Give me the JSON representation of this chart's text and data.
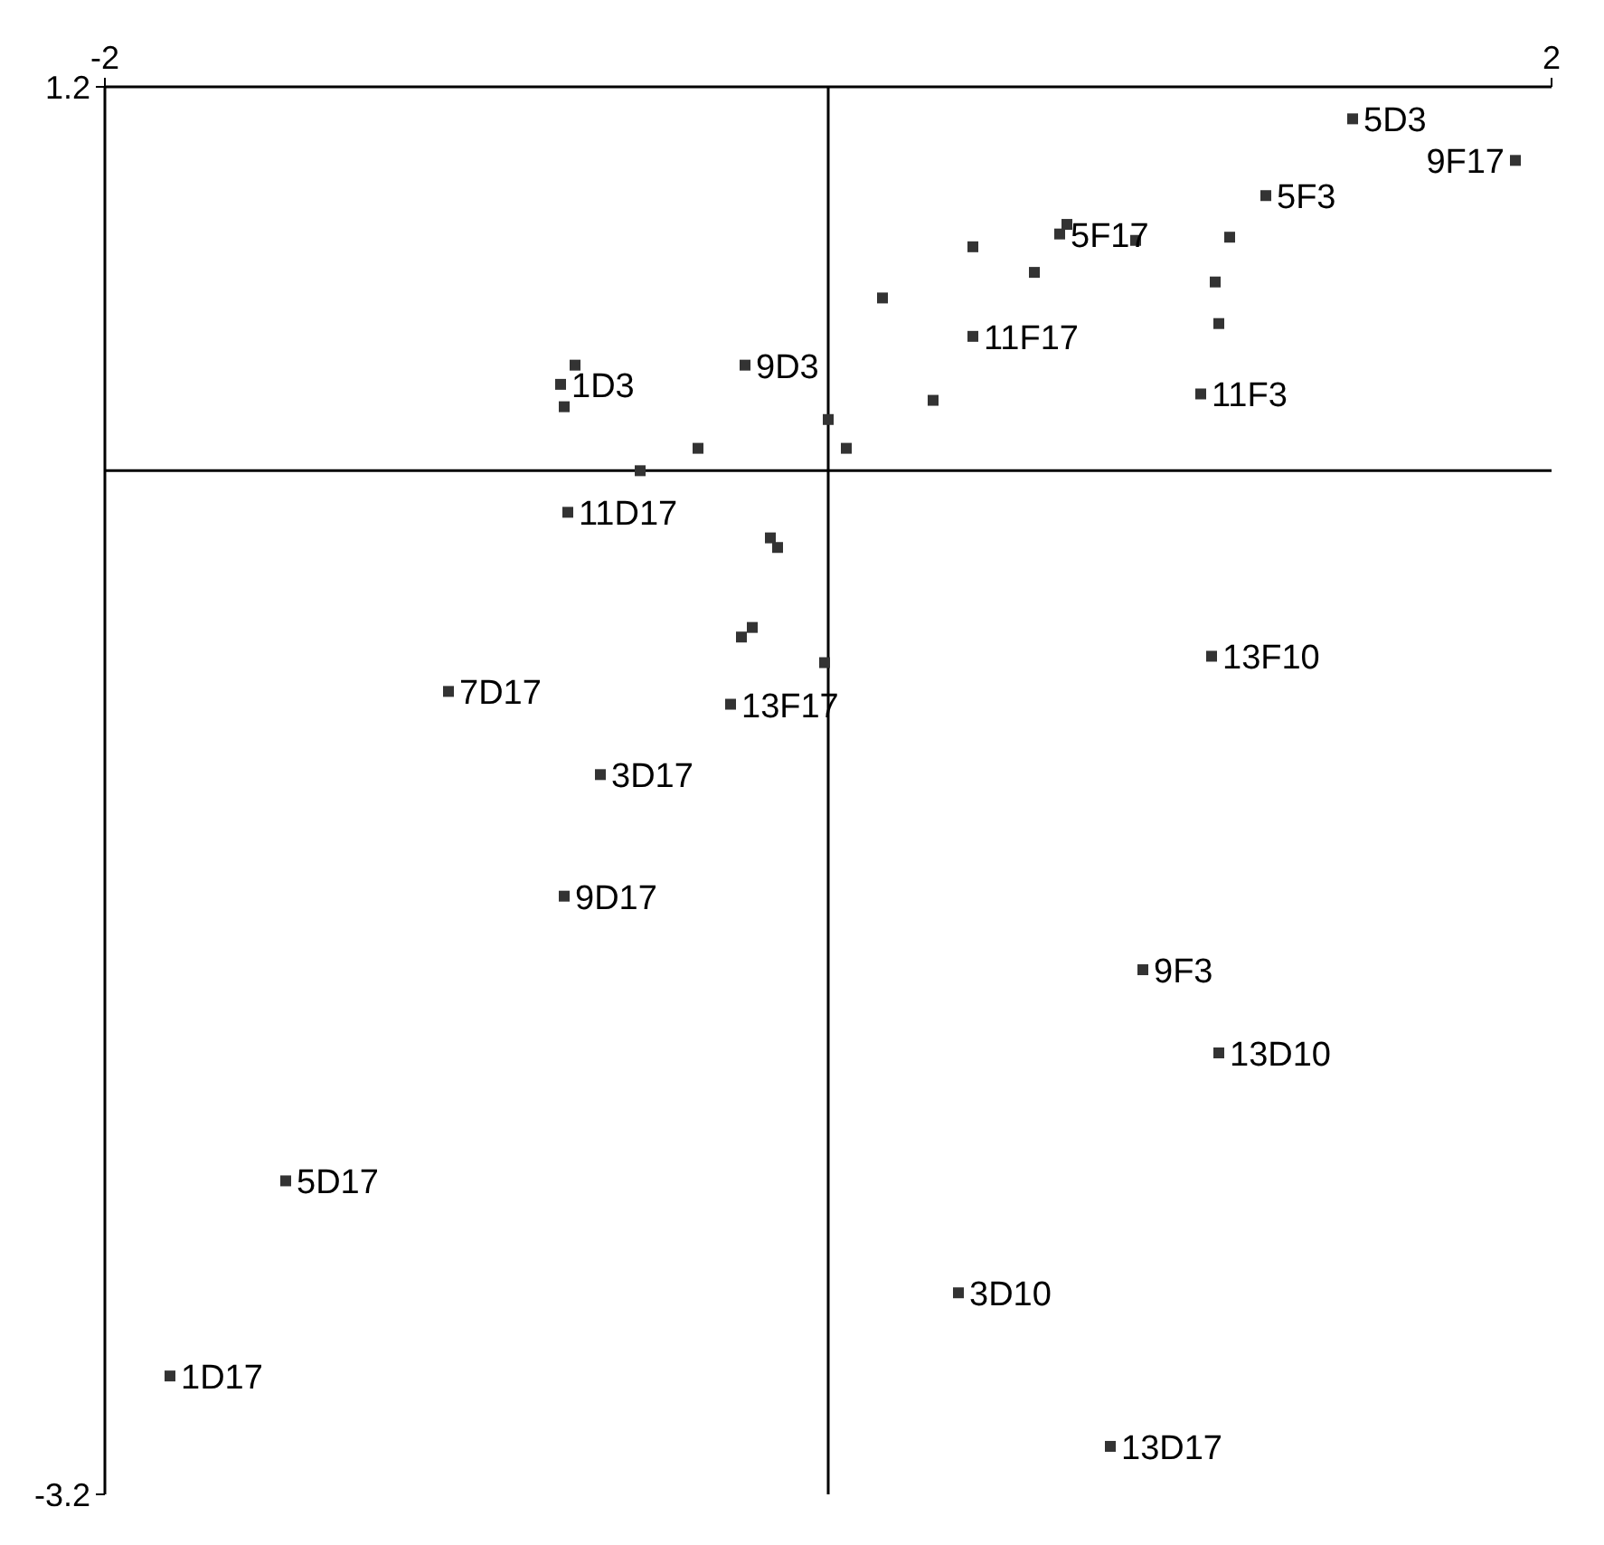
{
  "chart_data": {
    "type": "scatter",
    "marker": "square",
    "xlim": [
      -2,
      2
    ],
    "ylim": [
      -3.2,
      1.2
    ],
    "xticks": [
      -2,
      2
    ],
    "yticks": [
      1.2,
      -3.2
    ],
    "series": [
      {
        "color": "#333333",
        "x": [
          1.45,
          1.21,
          1.9,
          0.64,
          0.4,
          -0.23,
          -0.74,
          1.03,
          -0.72,
          1.06,
          -1.05,
          -0.27,
          -0.63,
          -0.73,
          0.87,
          1.08,
          -1.5,
          0.36,
          -1.82,
          0.78,
          0.66,
          0.85,
          1.11,
          0.4,
          0.57,
          1.07,
          1.08,
          0.15,
          -0.7,
          -0.73,
          0.29,
          0.0,
          0.05,
          -0.36,
          -0.52,
          -0.16,
          -0.14,
          -0.21,
          -0.24,
          -0.01
        ],
        "values": [
          1.1,
          0.86,
          0.97,
          0.74,
          0.42,
          0.33,
          0.27,
          0.24,
          -0.13,
          -0.58,
          -0.69,
          -0.73,
          -0.95,
          -1.33,
          -1.56,
          -1.82,
          -2.22,
          -2.57,
          -2.83,
          -3.05,
          0.77,
          0.72,
          0.73,
          0.7,
          0.62,
          0.59,
          0.46,
          0.54,
          0.33,
          0.2,
          0.22,
          0.16,
          0.07,
          0.07,
          0.0,
          -0.21,
          -0.24,
          -0.49,
          -0.52,
          -0.6
        ]
      }
    ],
    "annotations": [
      {
        "text": "5D3",
        "x": 1.45,
        "y": 1.1
      },
      {
        "text": "5F3",
        "x": 1.21,
        "y": 0.86
      },
      {
        "text": "9F17",
        "x": 1.9,
        "y": 0.97
      },
      {
        "text": "5F17",
        "x": 0.64,
        "y": 0.74
      },
      {
        "text": "11F17",
        "x": 0.4,
        "y": 0.42
      },
      {
        "text": "9D3",
        "x": -0.23,
        "y": 0.33
      },
      {
        "text": "1D3",
        "x": -0.74,
        "y": 0.27
      },
      {
        "text": "11F3",
        "x": 1.03,
        "y": 0.24
      },
      {
        "text": "11D17",
        "x": -0.72,
        "y": -0.13
      },
      {
        "text": "13F10",
        "x": 1.06,
        "y": -0.58
      },
      {
        "text": "7D17",
        "x": -1.05,
        "y": -0.69
      },
      {
        "text": "13F17",
        "x": -0.27,
        "y": -0.73
      },
      {
        "text": "3D17",
        "x": -0.63,
        "y": -0.95
      },
      {
        "text": "9D17",
        "x": -0.73,
        "y": -1.33
      },
      {
        "text": "9F3",
        "x": 0.87,
        "y": -1.56
      },
      {
        "text": "13D10",
        "x": 1.08,
        "y": -1.82
      },
      {
        "text": "5D17",
        "x": -1.5,
        "y": -2.22
      },
      {
        "text": "3D10",
        "x": 0.36,
        "y": -2.57
      },
      {
        "text": "1D17",
        "x": -1.82,
        "y": -2.83
      },
      {
        "text": "13D17",
        "x": 0.78,
        "y": -3.05
      }
    ]
  }
}
